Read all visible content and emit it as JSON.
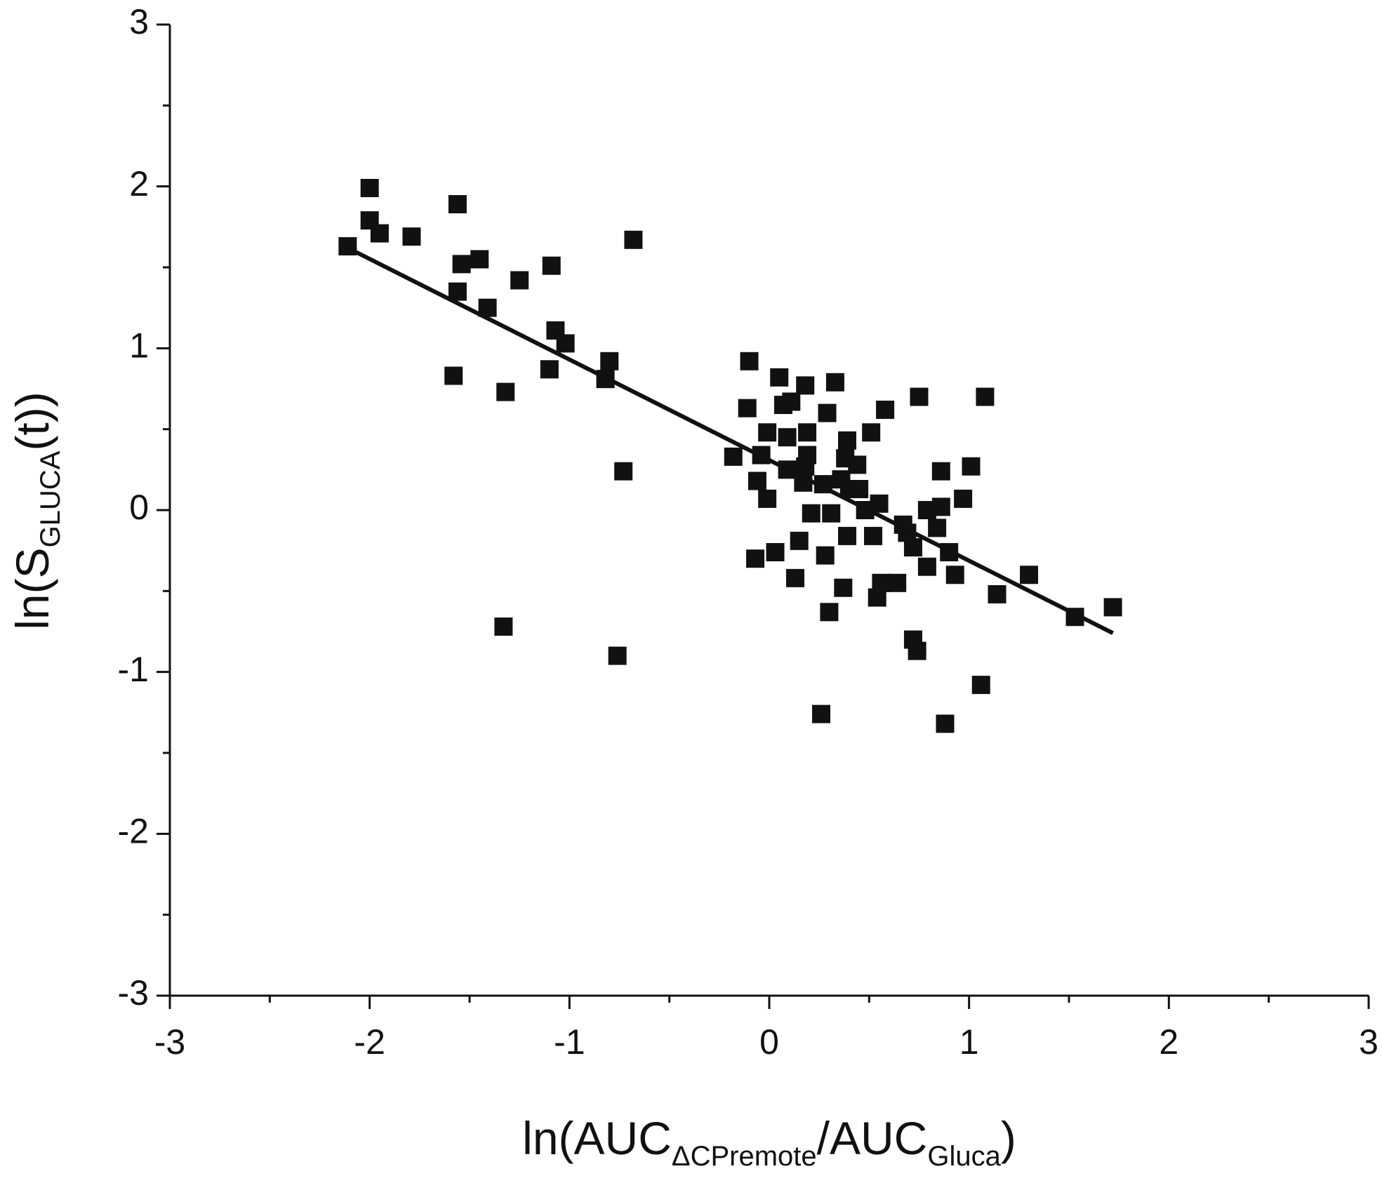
{
  "chart_data": {
    "type": "scatter",
    "xlabel_parts": [
      "ln(AUC",
      "ΔCPremote",
      "/AUC",
      "Gluca",
      ")"
    ],
    "ylabel_parts": [
      "ln(S",
      "GLUCA",
      "(t))"
    ],
    "xlim": [
      -3,
      3
    ],
    "ylim": [
      -3,
      3
    ],
    "xticks": [
      -3,
      -2,
      -1,
      0,
      1,
      2,
      3
    ],
    "yticks": [
      -3,
      -2,
      -1,
      0,
      1,
      2,
      3
    ],
    "xminorticks": [
      -2.5,
      -1.5,
      -0.5,
      0.5,
      1.5,
      2.5
    ],
    "yminorticks": [
      -2.5,
      -1.5,
      -0.5,
      0.5,
      1.5,
      2.5
    ],
    "color": "#111111",
    "x": [
      -2.11,
      -2.0,
      -2.0,
      -1.95,
      -1.79,
      -1.56,
      -1.54,
      -1.45,
      -1.56,
      -1.41,
      -1.25,
      -1.09,
      -0.68,
      -1.07,
      -1.02,
      -1.1,
      -1.58,
      -1.32,
      -0.8,
      -0.82,
      -0.73,
      -1.33,
      -0.76,
      -0.1,
      0.05,
      0.18,
      0.33,
      -0.11,
      0.07,
      0.11,
      0.29,
      0.58,
      0.75,
      1.08,
      -0.01,
      0.09,
      0.19,
      0.51,
      -0.18,
      -0.04,
      0.19,
      0.39,
      0.09,
      0.18,
      0.38,
      0.44,
      0.86,
      1.01,
      -0.06,
      0.17,
      0.27,
      0.36,
      0.4,
      0.45,
      -0.01,
      0.97,
      0.86,
      0.79,
      0.21,
      0.31,
      0.48,
      0.55,
      0.67,
      0.84,
      0.39,
      0.52,
      0.15,
      0.69,
      0.72,
      0.9,
      0.03,
      -0.07,
      0.28,
      0.79,
      0.93,
      1.3,
      0.13,
      0.56,
      0.64,
      0.37,
      0.54,
      1.14,
      0.3,
      1.53,
      1.72,
      0.72,
      0.74,
      1.06,
      0.26,
      0.88
    ],
    "y": [
      1.63,
      1.99,
      1.79,
      1.71,
      1.69,
      1.89,
      1.52,
      1.55,
      1.35,
      1.25,
      1.42,
      1.51,
      1.67,
      1.11,
      1.03,
      0.87,
      0.83,
      0.73,
      0.92,
      0.81,
      0.24,
      -0.72,
      -0.9,
      0.92,
      0.82,
      0.77,
      0.79,
      0.63,
      0.65,
      0.67,
      0.6,
      0.62,
      0.7,
      0.7,
      0.48,
      0.45,
      0.48,
      0.48,
      0.33,
      0.34,
      0.34,
      0.43,
      0.25,
      0.27,
      0.32,
      0.28,
      0.24,
      0.27,
      0.18,
      0.17,
      0.16,
      0.19,
      0.13,
      0.13,
      0.07,
      0.07,
      0.02,
      0.0,
      -0.02,
      -0.02,
      0.0,
      0.04,
      -0.09,
      -0.11,
      -0.16,
      -0.16,
      -0.19,
      -0.14,
      -0.23,
      -0.26,
      -0.26,
      -0.3,
      -0.28,
      -0.35,
      -0.4,
      -0.4,
      -0.42,
      -0.45,
      -0.45,
      -0.48,
      -0.54,
      -0.52,
      -0.63,
      -0.66,
      -0.6,
      -0.8,
      -0.87,
      -1.08,
      -1.26,
      -1.32
    ],
    "fit": {
      "x": [
        -2.11,
        1.72
      ],
      "y": [
        1.62,
        -0.76
      ]
    }
  }
}
